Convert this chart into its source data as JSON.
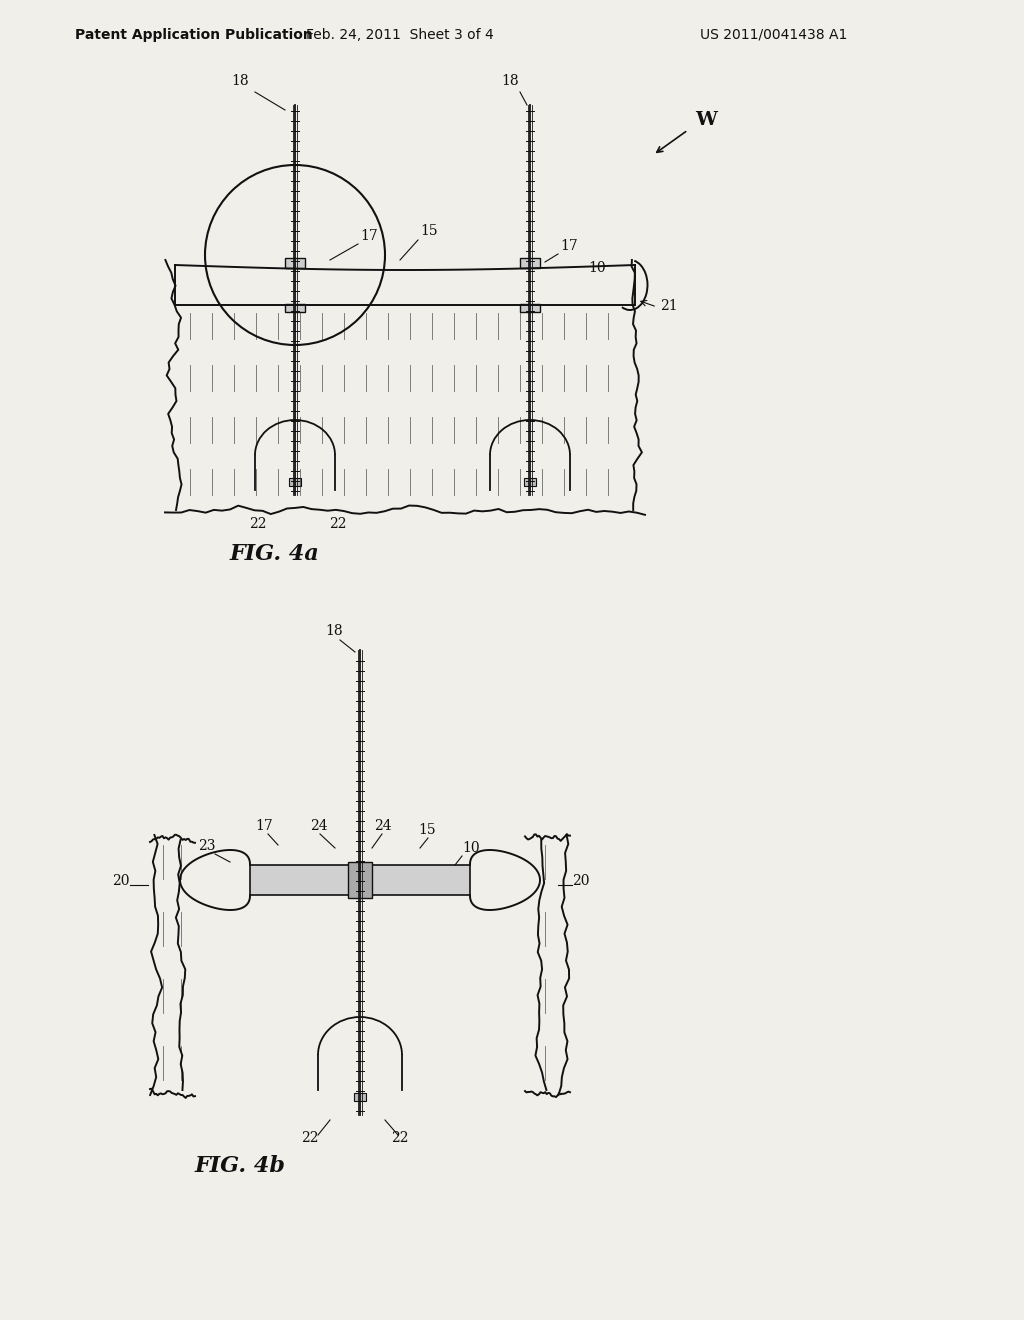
{
  "background_color": "#f0efea",
  "header_text": "Patent Application Publication",
  "header_date": "Feb. 24, 2011  Sheet 3 of 4",
  "header_patent": "US 2011/0041438 A1",
  "fig4a_label": "FIG. 4a",
  "fig4b_label": "FIG. 4b",
  "line_color": "#111111",
  "label_color": "#111111",
  "font_size_header": 10,
  "font_size_labels": 10,
  "font_size_fig": 16
}
